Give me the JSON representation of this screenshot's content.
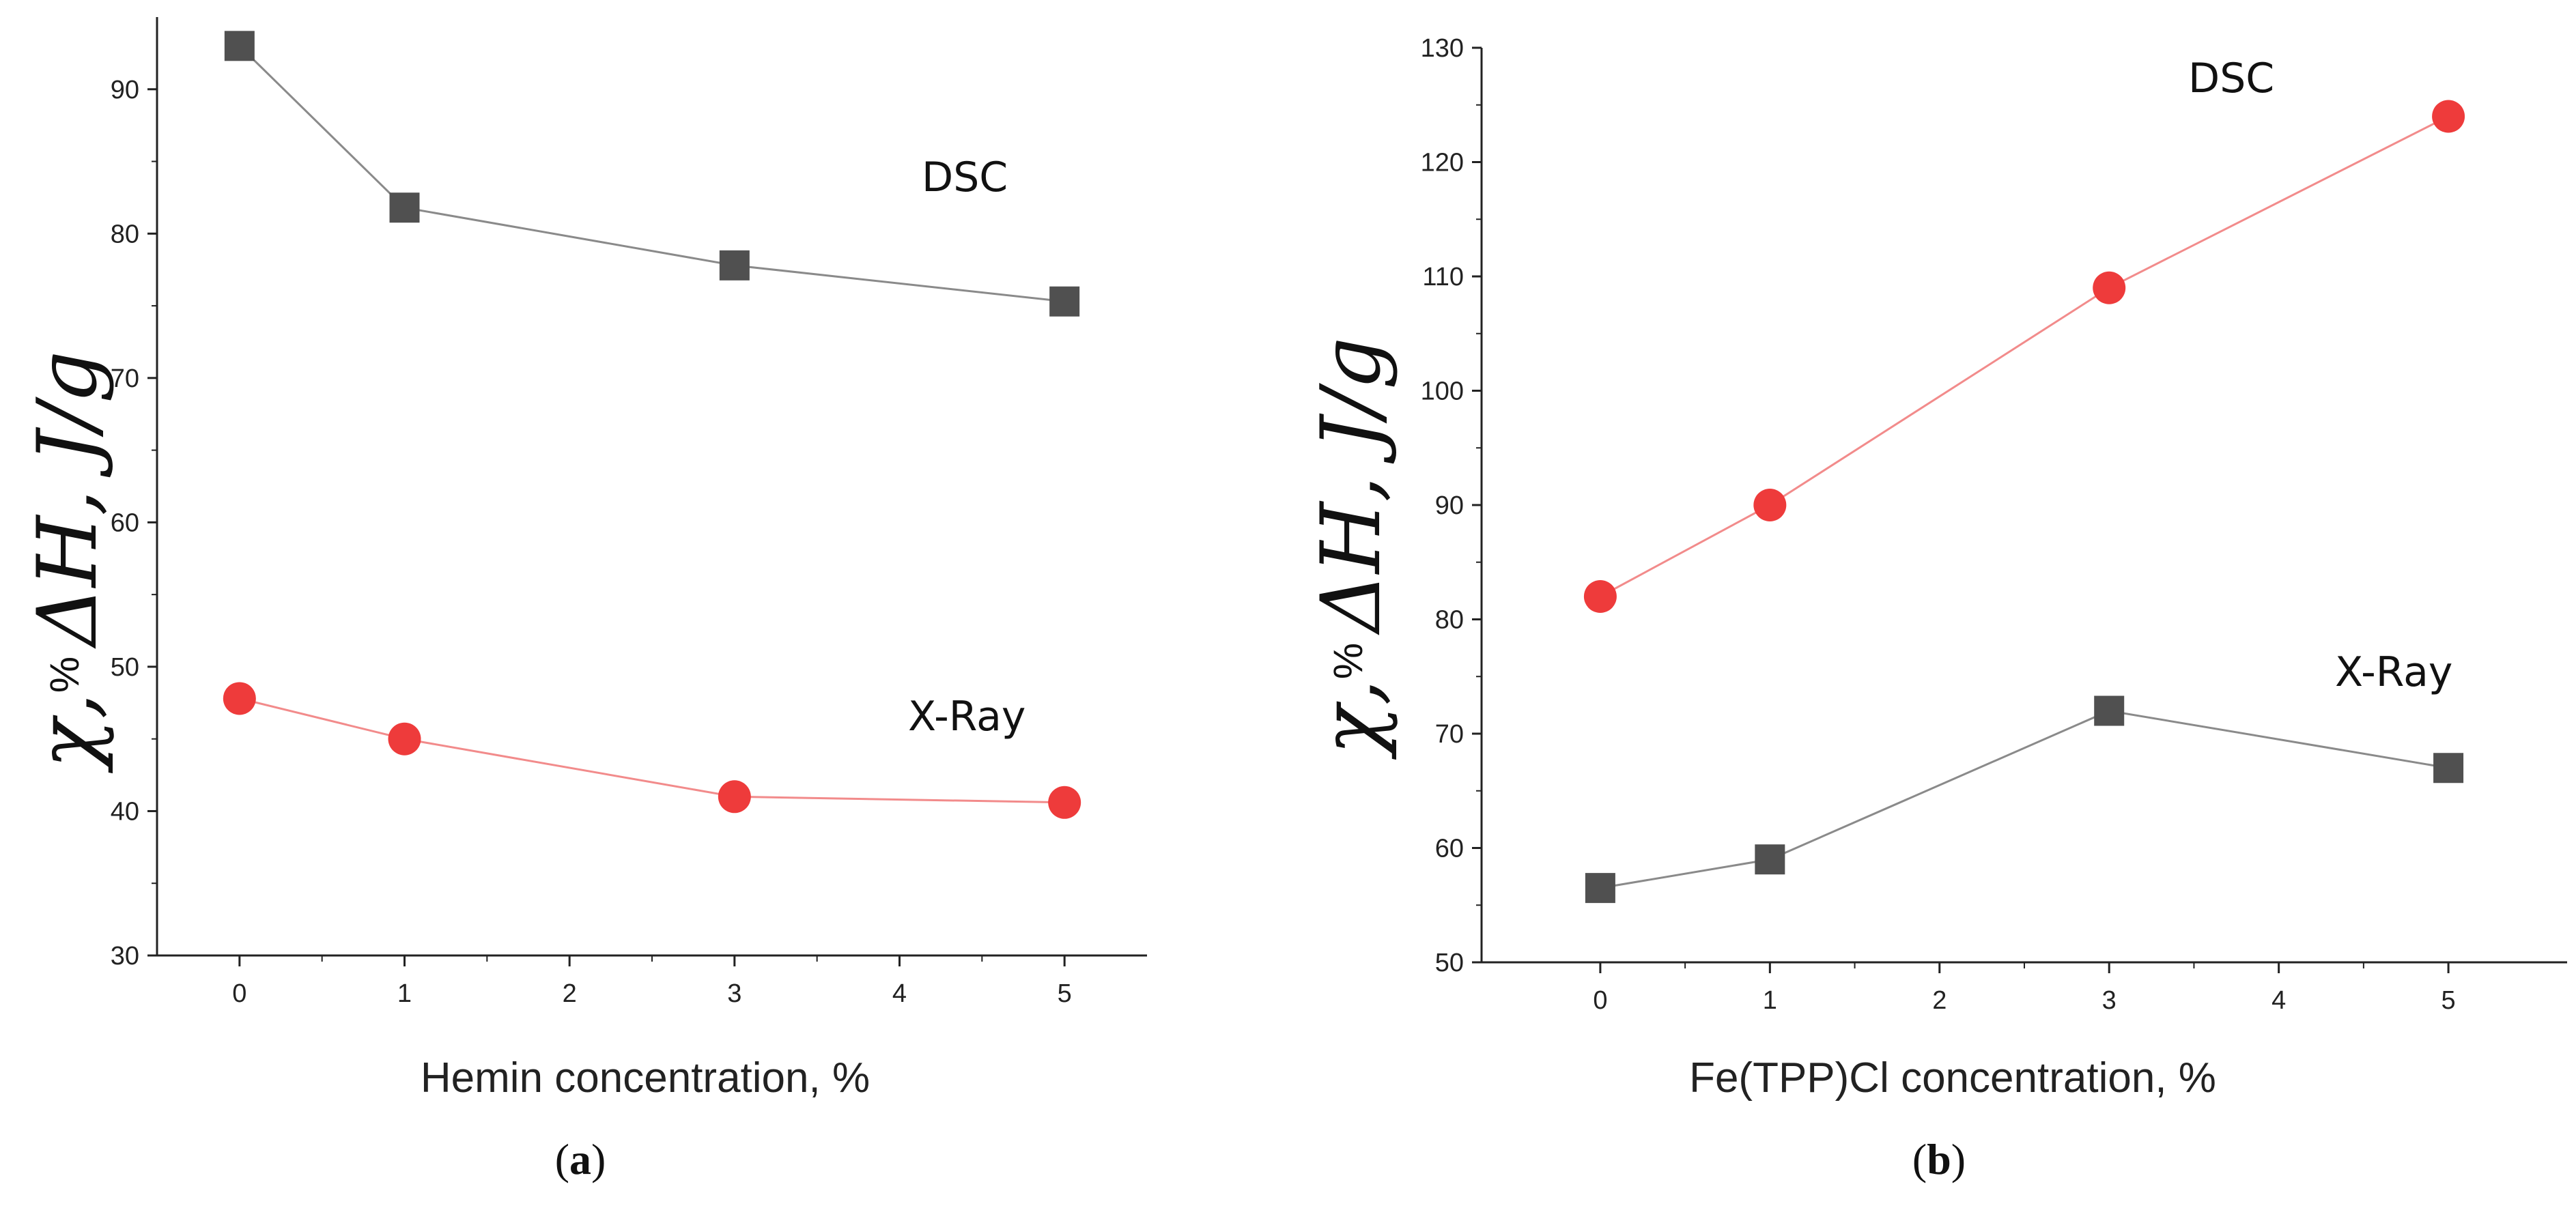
{
  "chart_data": [
    {
      "type": "line",
      "panel_label": "a",
      "xlabel": "Hemin concentration, %",
      "ylabel": {
        "chi": "χ,",
        "percent": "%",
        "dh": "ΔH, J/g"
      },
      "xlim": [
        -0.5,
        5.5
      ],
      "ylim": [
        30,
        95
      ],
      "xticks": [
        0,
        1,
        2,
        3,
        4,
        5
      ],
      "yticks": [
        30,
        40,
        50,
        60,
        70,
        80,
        90
      ],
      "grid": false,
      "series": [
        {
          "name": "DSC",
          "marker": "square",
          "color": "#505050",
          "x": [
            0,
            1,
            3,
            5
          ],
          "values": [
            93,
            81.8,
            77.8,
            75.3
          ]
        },
        {
          "name": "X-Ray",
          "marker": "circle",
          "color": "#ee3b3b",
          "x": [
            0,
            1,
            3,
            5
          ],
          "values": [
            47.8,
            45,
            41,
            40.6
          ]
        }
      ]
    },
    {
      "type": "line",
      "panel_label": "b",
      "xlabel": "Fe(TPP)Cl  concentration, %",
      "ylabel": {
        "chi": "χ,",
        "percent": "%",
        "dh": "ΔH, J/g"
      },
      "xlim": [
        -0.7,
        5.7
      ],
      "ylim": [
        50,
        130
      ],
      "xticks": [
        0,
        1,
        2,
        3,
        4,
        5
      ],
      "yticks": [
        50,
        60,
        70,
        80,
        90,
        100,
        110,
        120,
        130
      ],
      "grid": false,
      "series": [
        {
          "name": "DSC",
          "marker": "circle",
          "color": "#ee3b3b",
          "x": [
            0,
            1,
            3,
            5
          ],
          "values": [
            82,
            90,
            109,
            124
          ]
        },
        {
          "name": "X-Ray",
          "marker": "square",
          "color": "#505050",
          "x": [
            0,
            1,
            3,
            5
          ],
          "values": [
            56.5,
            59,
            72,
            67
          ]
        }
      ]
    }
  ]
}
